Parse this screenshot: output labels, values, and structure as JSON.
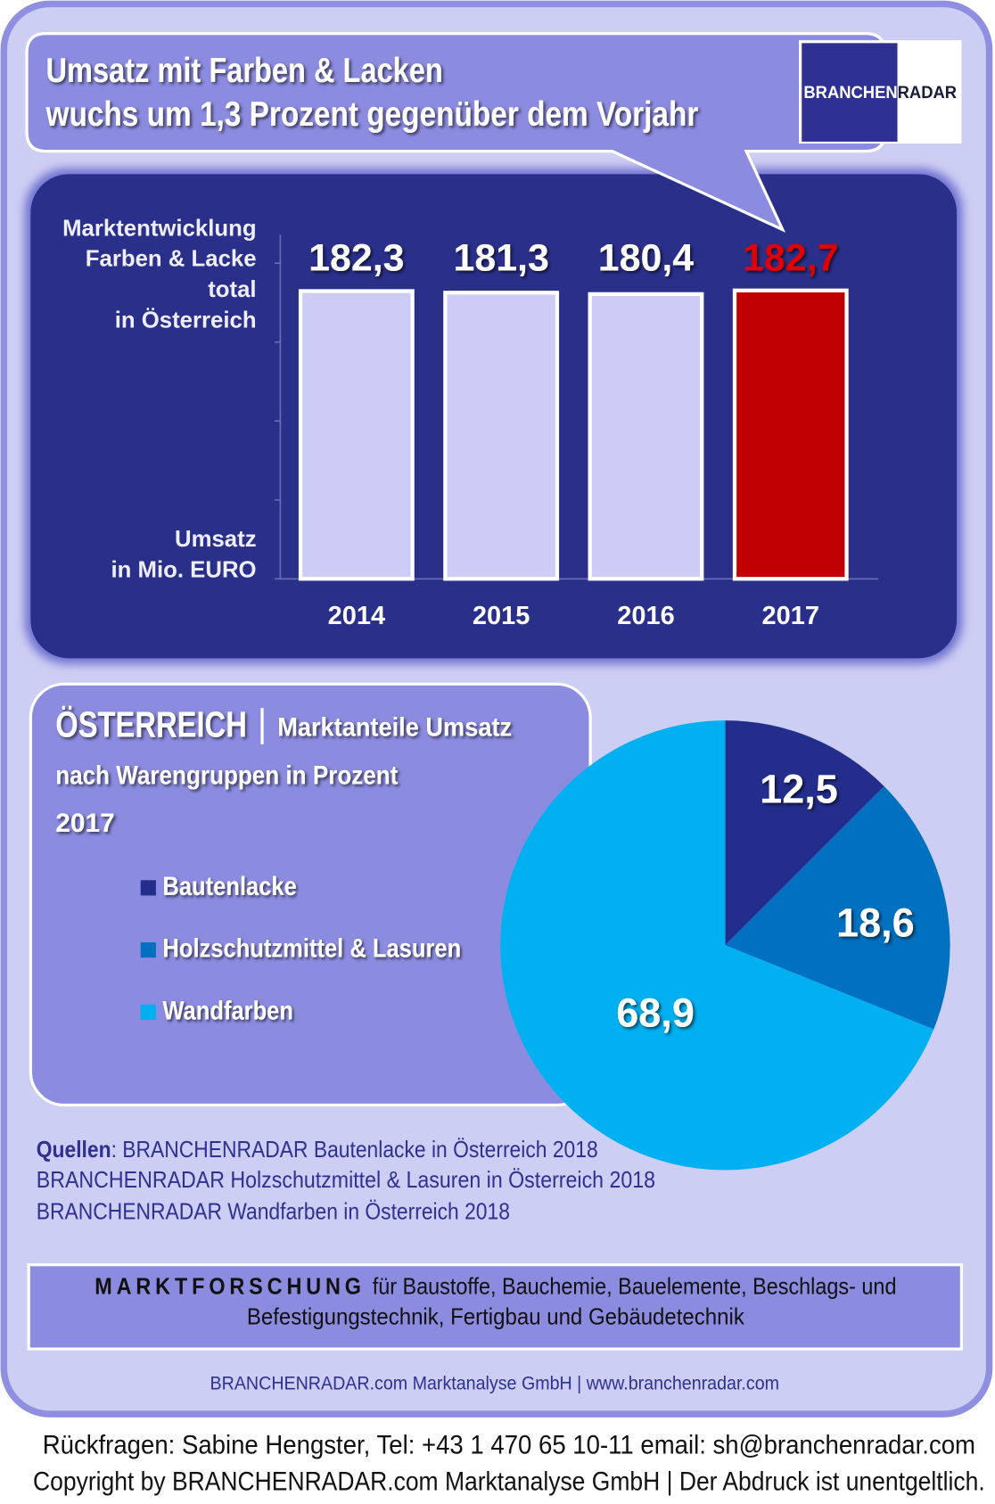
{
  "header": {
    "title_lines": [
      "Umsatz mit Farben & Lacken",
      "wuchs um 1,3 Prozent  gegenüber dem Vorjahr"
    ],
    "logo": [
      "BRANCHEN",
      "RADAR"
    ]
  },
  "chart_data": [
    {
      "type": "bar",
      "title_lines": [
        "Marktentwicklung",
        "Farben & Lacke",
        "total",
        "in Österreich"
      ],
      "ylabel_lines": [
        "Umsatz",
        "in Mio. EURO"
      ],
      "categories": [
        "2014",
        "2015",
        "2016",
        "2017"
      ],
      "values": [
        182.3,
        181.3,
        180.4,
        182.7
      ],
      "value_labels": [
        "182,3",
        "181,3",
        "180,4",
        "182,7"
      ],
      "colors": [
        "#ccccf7",
        "#ccccf7",
        "#ccccf7",
        "#c00000"
      ],
      "value_label_colors": [
        "#ffffff",
        "#ffffff",
        "#ffffff",
        "#e00000"
      ],
      "ylim": [
        0,
        200
      ],
      "yticks": [
        0,
        50,
        100,
        150,
        200
      ]
    },
    {
      "type": "pie",
      "title": "ÖSTERREICH",
      "subtitle_lines": [
        "Marktanteile Umsatz",
        "nach Warengruppen in Prozent",
        "2017"
      ],
      "categories": [
        "Bautenlacke",
        "Holzschutzmittel & Lasuren",
        "Wandfarben"
      ],
      "values": [
        12.5,
        18.6,
        68.9
      ],
      "value_labels": [
        "12,5",
        "18,6",
        "68,9"
      ],
      "colors": [
        "#232d8c",
        "#0070c0",
        "#00b0f0"
      ]
    }
  ],
  "sources": {
    "label": "Quellen",
    "lines": [
      ": BRANCHENRADAR Bautenlacke in Österreich 2018",
      "BRANCHENRADAR Holzschutzmittel & Lasuren in Österreich 2018",
      "BRANCHENRADAR Wandfarben in Österreich 2018"
    ]
  },
  "footer": {
    "lead": "MARKTFORSCHUNG",
    "lines": [
      "für Baustoffe, Bauchemie, Bauelemente, Beschlags- und",
      "Befestigungstechnik, Fertigbau und Gebäudetechnik"
    ],
    "company": "BRANCHENRADAR.com Marktanalyse GmbH | www.branchenradar.com",
    "contact": [
      "Rückfragen: Sabine Hengster, Tel: +43 1 470 65 10-11 email: sh@branchenradar.com",
      "Copyright by BRANCHENRADAR.com  Marktanalyse GmbH | Der Abdruck ist unentgeltlich."
    ]
  }
}
